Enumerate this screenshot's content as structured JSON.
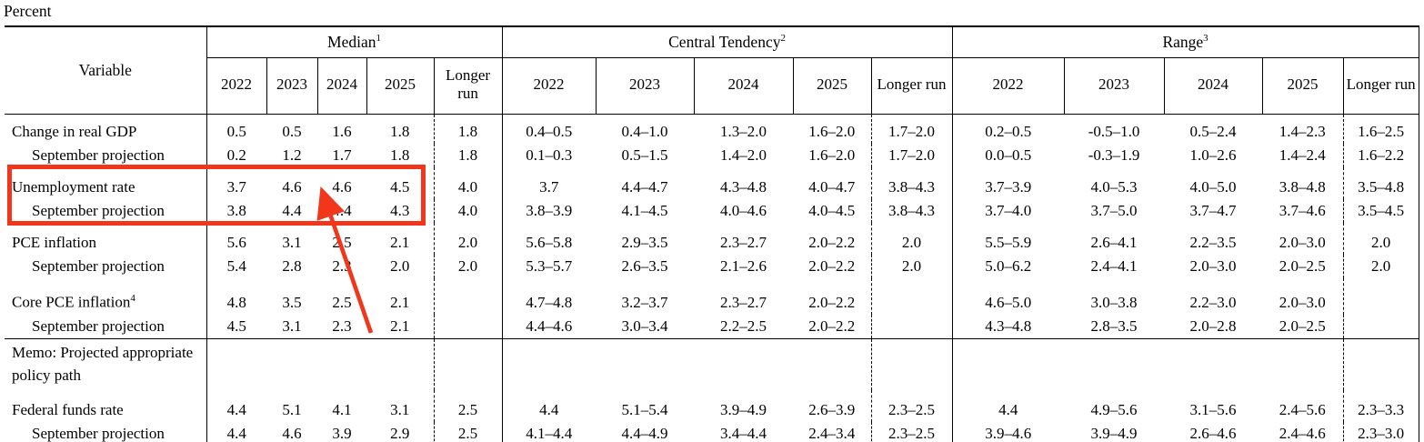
{
  "title": "Percent",
  "annotations": {
    "color": "#f2361b"
  },
  "table": {
    "variable_header": "Variable",
    "groups": [
      {
        "label": "Median",
        "sup": "1"
      },
      {
        "label": "Central Tendency",
        "sup": "2"
      },
      {
        "label": "Range",
        "sup": "3"
      }
    ],
    "year_headers": [
      "2022",
      "2023",
      "2024",
      "2025",
      "Longer run"
    ],
    "rows": [
      {
        "label": "Change in real GDP",
        "sup": "",
        "indent": false,
        "group_start": "first",
        "median": [
          "0.5",
          "0.5",
          "1.6",
          "1.8",
          "1.8"
        ],
        "central_tendency": [
          "0.4–0.5",
          "0.4–1.0",
          "1.3–2.0",
          "1.6–2.0",
          "1.7–2.0"
        ],
        "range": [
          "0.2–0.5",
          "-0.5–1.0",
          "0.5–2.4",
          "1.4–2.3",
          "1.6–2.5"
        ]
      },
      {
        "label": "September projection",
        "sup": "",
        "indent": true,
        "group_start": "",
        "median": [
          "0.2",
          "1.2",
          "1.7",
          "1.8",
          "1.8"
        ],
        "central_tendency": [
          "0.1–0.3",
          "0.5–1.5",
          "1.4–2.0",
          "1.6–2.0",
          "1.7–2.0"
        ],
        "range": [
          "0.0–0.5",
          "-0.3–1.9",
          "1.0–2.6",
          "1.4–2.4",
          "1.6–2.2"
        ]
      },
      {
        "label": "Unemployment rate",
        "sup": "",
        "indent": false,
        "group_start": "yes",
        "median": [
          "3.7",
          "4.6",
          "4.6",
          "4.5",
          "4.0"
        ],
        "central_tendency": [
          "3.7",
          "4.4–4.7",
          "4.3–4.8",
          "4.0–4.7",
          "3.8–4.3"
        ],
        "range": [
          "3.7–3.9",
          "4.0–5.3",
          "4.0–5.0",
          "3.8–4.8",
          "3.5–4.8"
        ]
      },
      {
        "label": "September projection",
        "sup": "",
        "indent": true,
        "group_start": "",
        "median": [
          "3.8",
          "4.4",
          "4.4",
          "4.3",
          "4.0"
        ],
        "central_tendency": [
          "3.8–3.9",
          "4.1–4.5",
          "4.0–4.6",
          "4.0–4.5",
          "3.8–4.3"
        ],
        "range": [
          "3.7–4.0",
          "3.7–5.0",
          "3.7–4.7",
          "3.7–4.6",
          "3.5–4.5"
        ]
      },
      {
        "label": "PCE inflation",
        "sup": "",
        "indent": false,
        "group_start": "yes",
        "median": [
          "5.6",
          "3.1",
          "2.5",
          "2.1",
          "2.0"
        ],
        "central_tendency": [
          "5.6–5.8",
          "2.9–3.5",
          "2.3–2.7",
          "2.0–2.2",
          "2.0"
        ],
        "range": [
          "5.5–5.9",
          "2.6–4.1",
          "2.2–3.5",
          "2.0–3.0",
          "2.0"
        ]
      },
      {
        "label": "September projection",
        "sup": "",
        "indent": true,
        "group_start": "",
        "median": [
          "5.4",
          "2.8",
          "2.3",
          "2.0",
          "2.0"
        ],
        "central_tendency": [
          "5.3–5.7",
          "2.6–3.5",
          "2.1–2.6",
          "2.0–2.2",
          "2.0"
        ],
        "range": [
          "5.0–6.2",
          "2.4–4.1",
          "2.0–3.0",
          "2.0–2.5",
          "2.0"
        ]
      },
      {
        "label": "Core PCE inflation",
        "sup": "4",
        "indent": false,
        "group_start": "yes",
        "median": [
          "4.8",
          "3.5",
          "2.5",
          "2.1",
          ""
        ],
        "central_tendency": [
          "4.7–4.8",
          "3.2–3.7",
          "2.3–2.7",
          "2.0–2.2",
          ""
        ],
        "range": [
          "4.6–5.0",
          "3.0–3.8",
          "2.2–3.0",
          "2.0–3.0",
          ""
        ]
      },
      {
        "label": "September projection",
        "sup": "",
        "indent": true,
        "group_start": "",
        "median": [
          "4.5",
          "3.1",
          "2.3",
          "2.1",
          ""
        ],
        "central_tendency": [
          "4.4–4.6",
          "3.0–3.4",
          "2.2–2.5",
          "2.0–2.2",
          ""
        ],
        "range": [
          "4.3–4.8",
          "2.8–3.5",
          "2.0–2.8",
          "2.0–2.5",
          ""
        ]
      },
      {
        "label": "Memo: Projected appropriate policy path",
        "sup": "",
        "indent": false,
        "group_start": "",
        "memo": true,
        "median": [
          "",
          "",
          "",
          "",
          ""
        ],
        "central_tendency": [
          "",
          "",
          "",
          "",
          ""
        ],
        "range": [
          "",
          "",
          "",
          "",
          ""
        ]
      },
      {
        "label": "Federal funds rate",
        "sup": "",
        "indent": false,
        "group_start": "yes",
        "median": [
          "4.4",
          "5.1",
          "4.1",
          "3.1",
          "2.5"
        ],
        "central_tendency": [
          "4.4",
          "5.1–5.4",
          "3.9–4.9",
          "2.6–3.9",
          "2.3–2.5"
        ],
        "range": [
          "4.4",
          "4.9–5.6",
          "3.1–5.6",
          "2.4–5.6",
          "2.3–3.3"
        ]
      },
      {
        "label": "September projection",
        "sup": "",
        "indent": true,
        "group_start": "",
        "median": [
          "4.4",
          "4.6",
          "3.9",
          "2.9",
          "2.5"
        ],
        "central_tendency": [
          "4.1–4.4",
          "4.4–4.9",
          "3.4–4.4",
          "2.4–3.4",
          "2.3–2.5"
        ],
        "range": [
          "3.9–4.6",
          "3.9–4.9",
          "2.6–4.6",
          "2.4–4.6",
          "2.3–3.0"
        ]
      }
    ]
  }
}
